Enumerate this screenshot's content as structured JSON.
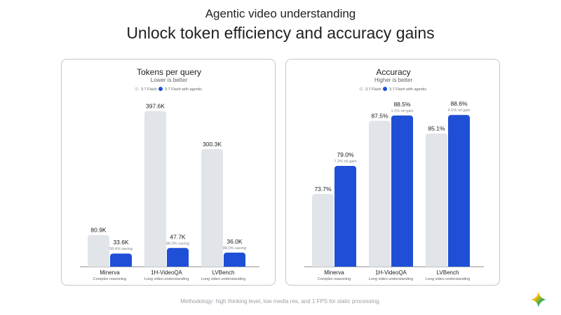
{
  "header": {
    "eyebrow": "Agentic video understanding",
    "title": "Unlock token efficiency and accuracy gains"
  },
  "footer": {
    "methodology": "Methodology: high thinking level, low media res, and 1 FPS for static processing."
  },
  "colors": {
    "baseline": "#e1e4e8",
    "agentic": "#1e4fd6",
    "text": "#202124",
    "muted": "#9aa0a6"
  },
  "chart_data": [
    {
      "type": "bar",
      "title": "Tokens per query",
      "subtitle": "Lower is better",
      "legend_position": "top",
      "grid": false,
      "categories": [
        "Minerva",
        "1H-VideoQA",
        "LVBench"
      ],
      "category_sublabels": [
        "Complex reasoning",
        "Long video understanding",
        "Long video understanding"
      ],
      "ylim": [
        0,
        420
      ],
      "series": [
        {
          "name": "3.7 Flash",
          "color": "#e1e4e8",
          "values": [
            80.9,
            397.6,
            300.3
          ],
          "labels": [
            "80.9K",
            "397.6K",
            "300.3K"
          ],
          "notes": [
            "",
            "",
            ""
          ]
        },
        {
          "name": "3.7 Flash with agentic",
          "color": "#1e4fd6",
          "values": [
            33.6,
            47.7,
            36.0
          ],
          "labels": [
            "33.6K",
            "47.7K",
            "36.0K"
          ],
          "notes": [
            "58.4% saving",
            "88.0% saving",
            "88.0% saving"
          ]
        }
      ]
    },
    {
      "type": "bar",
      "title": "Accuracy",
      "subtitle": "Higher is better",
      "legend_position": "top",
      "grid": false,
      "categories": [
        "Minerva",
        "1H-VideoQA",
        "LVBench"
      ],
      "category_sublabels": [
        "Complex reasoning",
        "Long video understanding",
        "Long video understanding"
      ],
      "ylim": [
        60,
        91
      ],
      "series": [
        {
          "name": "3.7 Flash",
          "color": "#e1e4e8",
          "values": [
            73.7,
            87.5,
            85.1
          ],
          "labels": [
            "73.7%",
            "87.5%",
            "85.1%"
          ],
          "notes": [
            "",
            "",
            ""
          ]
        },
        {
          "name": "3.7 Flash with agentic",
          "color": "#1e4fd6",
          "values": [
            79.0,
            88.5,
            88.6
          ],
          "labels": [
            "79.0%",
            "88.5%",
            "88.6%"
          ],
          "notes": [
            "7.2% rel gain",
            "1.1% rel gain",
            "4.1% rel gain"
          ]
        }
      ]
    }
  ]
}
